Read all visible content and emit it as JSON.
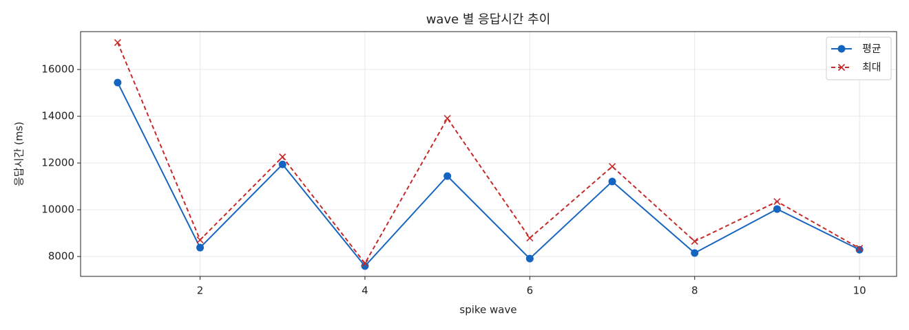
{
  "chart_data": {
    "type": "line",
    "title": "wave 별 응답시간 추이",
    "x_label": "spike wave",
    "y_label": "응답시간 (ms)",
    "x": [
      1,
      2,
      3,
      4,
      5,
      6,
      7,
      8,
      9,
      10
    ],
    "series": [
      {
        "name": "평균",
        "color": "#1565c0",
        "linestyle": "solid",
        "marker": "circle",
        "values": [
          15440,
          8380,
          11940,
          7590,
          11440,
          7910,
          11210,
          8150,
          10030,
          8290
        ]
      },
      {
        "name": "최대",
        "color": "#c62828",
        "linestyle": "dashed",
        "marker": "x",
        "values": [
          17150,
          8710,
          12260,
          7710,
          13910,
          8790,
          11850,
          8650,
          10350,
          8350
        ]
      }
    ],
    "xlim": [
      0.55,
      10.45
    ],
    "xticks": [
      2,
      4,
      6,
      8,
      10
    ],
    "ylim": [
      7150,
      17620
    ],
    "yticks": [
      8000,
      10000,
      12000,
      14000,
      16000
    ],
    "grid": true,
    "legend": "upper right"
  }
}
